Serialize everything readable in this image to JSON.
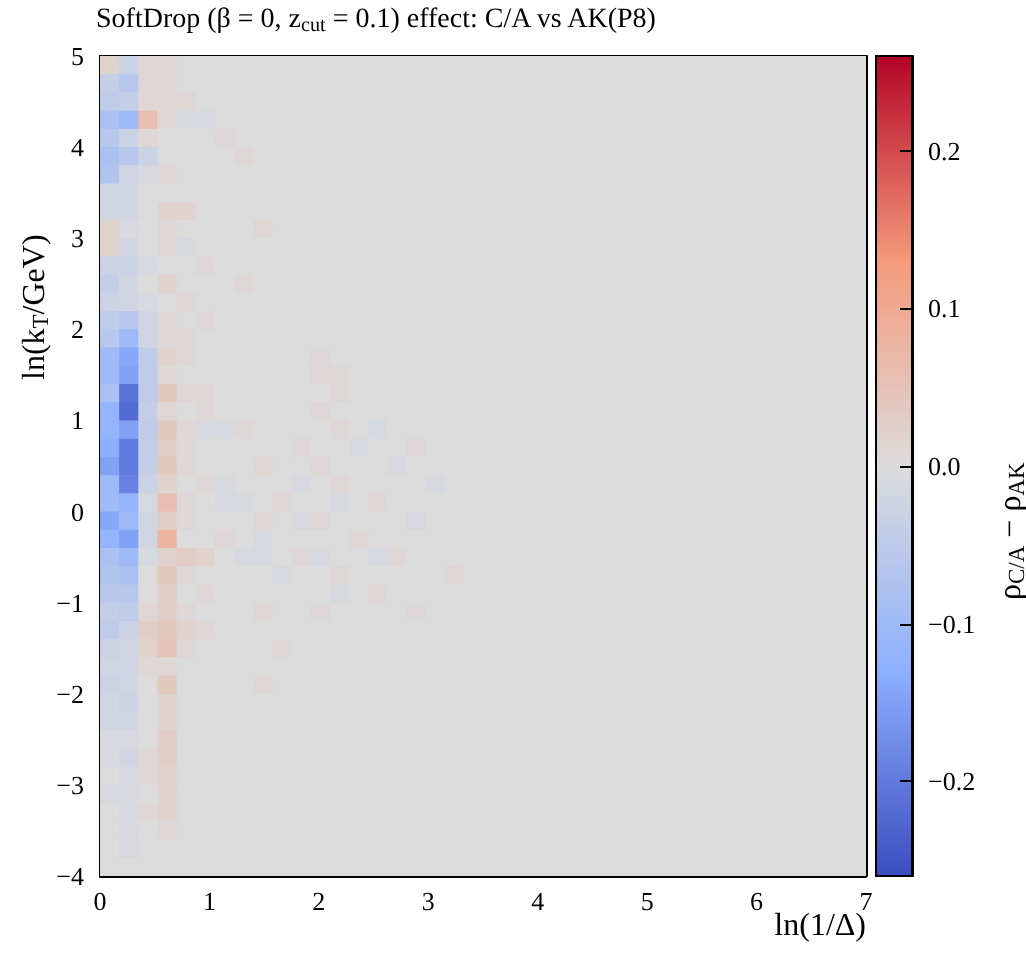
{
  "chart_data": {
    "type": "heatmap",
    "title": "SoftDrop (β = 0, z$_{cut}$ = 0.1) effect: C/A vs AK(P8)",
    "xlabel": "ln(1/Δ)",
    "ylabel": "ln(k$_{T}$/GeV)",
    "clabel": "ρ$_{C/A}$ − ρ$_{AK}$",
    "xlim": [
      0,
      7
    ],
    "xticks": [
      0,
      1,
      2,
      3,
      4,
      5,
      6,
      7
    ],
    "ylim": [
      -4,
      5
    ],
    "yticks": [
      {
        "value": -4,
        "label": "−4"
      },
      {
        "value": -3,
        "label": "−3"
      },
      {
        "value": -2,
        "label": "−2"
      },
      {
        "value": -1,
        "label": "−1"
      },
      0,
      1,
      2,
      3,
      4,
      5
    ],
    "clim": [
      -0.26,
      0.26
    ],
    "cticks": [
      {
        "value": -0.2,
        "label": "−0.2"
      },
      {
        "value": -0.1,
        "label": "−0.1"
      },
      {
        "value": 0,
        "label": "0.0"
      },
      0.1,
      0.2
    ],
    "cells": [
      [
        0.02,
        -0.03,
        0.01,
        0.01,
        0,
        0,
        0,
        0,
        0,
        0,
        0,
        0,
        0,
        0,
        0,
        0,
        0,
        0,
        0,
        0,
        0,
        0,
        0,
        0,
        0,
        0,
        0,
        0,
        0,
        0,
        0,
        0,
        0,
        0,
        0,
        0,
        0,
        0,
        0,
        0
      ],
      [
        -0.04,
        -0.06,
        0.01,
        0.01,
        0,
        0,
        0,
        0,
        0,
        0,
        0,
        0,
        0,
        0,
        0,
        0,
        0,
        0,
        0,
        0,
        0,
        0,
        0,
        0,
        0,
        0,
        0,
        0,
        0,
        0,
        0,
        0,
        0,
        0,
        0,
        0,
        0,
        0,
        0,
        0
      ],
      [
        -0.05,
        -0.04,
        0.01,
        0.01,
        0.01,
        0,
        0,
        0,
        0,
        0,
        0,
        0,
        0,
        0,
        0,
        0,
        0,
        0,
        0,
        0,
        0,
        0,
        0,
        0,
        0,
        0,
        0,
        0,
        0,
        0,
        0,
        0,
        0,
        0,
        0,
        0,
        0,
        0,
        0,
        0
      ],
      [
        -0.08,
        -0.1,
        0.06,
        0.01,
        -0.01,
        -0.01,
        0,
        0,
        0,
        0,
        0,
        0,
        0,
        0,
        0,
        0,
        0,
        0,
        0,
        0,
        0,
        0,
        0,
        0,
        0,
        0,
        0,
        0,
        0,
        0,
        0,
        0,
        0,
        0,
        0,
        0,
        0,
        0,
        0,
        0
      ],
      [
        -0.06,
        -0.03,
        0.01,
        0,
        0,
        0,
        0.01,
        0,
        0,
        0,
        0,
        0,
        0,
        0,
        0,
        0,
        0,
        0,
        0,
        0,
        0,
        0,
        0,
        0,
        0,
        0,
        0,
        0,
        0,
        0,
        0,
        0,
        0,
        0,
        0,
        0,
        0,
        0,
        0,
        0
      ],
      [
        -0.08,
        -0.06,
        -0.03,
        0,
        0,
        0,
        0,
        0.01,
        0,
        0,
        0,
        0,
        0,
        0,
        0,
        0,
        0,
        0,
        0,
        0,
        0,
        0,
        0,
        0,
        0,
        0,
        0,
        0,
        0,
        0,
        0,
        0,
        0,
        0,
        0,
        0,
        0,
        0,
        0,
        0
      ],
      [
        -0.07,
        -0.02,
        -0.01,
        0.01,
        0,
        0,
        0,
        0,
        0,
        0,
        0,
        0,
        0,
        0,
        0,
        0,
        0,
        0,
        0,
        0,
        0,
        0,
        0,
        0,
        0,
        0,
        0,
        0,
        0,
        0,
        0,
        0,
        0,
        0,
        0,
        0,
        0,
        0,
        0,
        0
      ],
      [
        -0.02,
        -0.02,
        0,
        0,
        0,
        0,
        0,
        0,
        0,
        0,
        0,
        0,
        0,
        0,
        0,
        0,
        0,
        0,
        0,
        0,
        0,
        0,
        0,
        0,
        0,
        0,
        0,
        0,
        0,
        0,
        0,
        0,
        0,
        0,
        0,
        0,
        0,
        0,
        0,
        0
      ],
      [
        -0.02,
        -0.02,
        0,
        0.02,
        0.02,
        0,
        0,
        0,
        0,
        0,
        0,
        0,
        0,
        0,
        0,
        0,
        0,
        0,
        0,
        0,
        0,
        0,
        0,
        0,
        0,
        0,
        0,
        0,
        0,
        0,
        0,
        0,
        0,
        0,
        0,
        0,
        0,
        0,
        0,
        0
      ],
      [
        0.02,
        -0.01,
        0,
        0.01,
        0,
        0,
        0,
        0,
        0.01,
        0,
        0,
        0,
        0,
        0,
        0,
        0,
        0,
        0,
        0,
        0,
        0,
        0,
        0,
        0,
        0,
        0,
        0,
        0,
        0,
        0,
        0,
        0,
        0,
        0,
        0,
        0,
        0,
        0,
        0,
        0
      ],
      [
        0.02,
        -0.02,
        0,
        0.01,
        -0.01,
        0,
        0,
        0,
        0,
        0,
        0,
        0,
        0,
        0,
        0,
        0,
        0,
        0,
        0,
        0,
        0,
        0,
        0,
        0,
        0,
        0,
        0,
        0,
        0,
        0,
        0,
        0,
        0,
        0,
        0,
        0,
        0,
        0,
        0,
        0
      ],
      [
        -0.03,
        -0.03,
        -0.01,
        0,
        0,
        0.01,
        0,
        0,
        0,
        0,
        0,
        0,
        0,
        0,
        0,
        0,
        0,
        0,
        0,
        0,
        0,
        0,
        0,
        0,
        0,
        0,
        0,
        0,
        0,
        0,
        0,
        0,
        0,
        0,
        0,
        0,
        0,
        0,
        0,
        0
      ],
      [
        -0.04,
        -0.02,
        0,
        0.02,
        0,
        0,
        0,
        0.01,
        0,
        0,
        0,
        0,
        0,
        0,
        0,
        0,
        0,
        0,
        0,
        0,
        0,
        0,
        0,
        0,
        0,
        0,
        0,
        0,
        0,
        0,
        0,
        0,
        0,
        0,
        0,
        0,
        0,
        0,
        0,
        0
      ],
      [
        -0.03,
        -0.02,
        -0.01,
        0,
        0.01,
        0,
        0,
        0,
        0,
        0,
        0,
        0,
        0,
        0,
        0,
        0,
        0,
        0,
        0,
        0,
        0,
        0,
        0,
        0,
        0,
        0,
        0,
        0,
        0,
        0,
        0,
        0,
        0,
        0,
        0,
        0,
        0,
        0,
        0,
        0
      ],
      [
        -0.05,
        -0.06,
        -0.02,
        0.01,
        0,
        0.01,
        0,
        0,
        0,
        0,
        0,
        0,
        0,
        0,
        0,
        0,
        0,
        0,
        0,
        0,
        0,
        0,
        0,
        0,
        0,
        0,
        0,
        0,
        0,
        0,
        0,
        0,
        0,
        0,
        0,
        0,
        0,
        0,
        0,
        0
      ],
      [
        -0.06,
        -0.1,
        -0.02,
        0.01,
        0.01,
        0,
        0,
        0,
        0,
        0,
        0,
        0,
        0,
        0,
        0,
        0,
        0,
        0,
        0,
        0,
        0,
        0,
        0,
        0,
        0,
        0,
        0,
        0,
        0,
        0,
        0,
        0,
        0,
        0,
        0,
        0,
        0,
        0,
        0,
        0
      ],
      [
        -0.1,
        -0.14,
        -0.05,
        0.02,
        0.01,
        0,
        0,
        0,
        0,
        0,
        0,
        0.01,
        0,
        0,
        0,
        0,
        0,
        0,
        0,
        0,
        0,
        0,
        0,
        0,
        0,
        0,
        0,
        0,
        0,
        0,
        0,
        0,
        0,
        0,
        0,
        0,
        0,
        0,
        0,
        0
      ],
      [
        -0.1,
        -0.15,
        -0.05,
        0.01,
        0,
        0,
        0,
        0,
        0,
        0,
        0,
        0.01,
        0.01,
        0,
        0,
        0,
        0,
        0,
        0,
        0,
        0,
        0,
        0,
        0,
        0,
        0,
        0,
        0,
        0,
        0,
        0,
        0,
        0,
        0,
        0,
        0,
        0,
        0,
        0,
        0
      ],
      [
        -0.08,
        -0.21,
        -0.05,
        0.04,
        0.01,
        0.01,
        0,
        0,
        0,
        0,
        0,
        0,
        0.01,
        0,
        0,
        0,
        0,
        0,
        0,
        0,
        0,
        0,
        0,
        0,
        0,
        0,
        0,
        0,
        0,
        0,
        0,
        0,
        0,
        0,
        0,
        0,
        0,
        0,
        0,
        0
      ],
      [
        -0.12,
        -0.22,
        -0.04,
        0.01,
        0,
        0.01,
        0,
        0,
        0,
        0,
        0,
        0.01,
        0,
        0,
        0,
        0,
        0,
        0,
        0,
        0,
        0,
        0,
        0,
        0,
        0,
        0,
        0,
        0,
        0,
        0,
        0,
        0,
        0,
        0,
        0,
        0,
        0,
        0,
        0,
        0
      ],
      [
        -0.12,
        -0.15,
        -0.05,
        0.04,
        0.01,
        -0.01,
        -0.01,
        0.01,
        0,
        0,
        0,
        0,
        0.01,
        0,
        -0.01,
        0,
        0,
        0,
        0,
        0,
        0,
        0,
        0,
        0,
        0,
        0,
        0,
        0,
        0,
        0,
        0,
        0,
        0,
        0,
        0,
        0,
        0,
        0,
        0,
        0
      ],
      [
        -0.13,
        -0.2,
        -0.04,
        0.03,
        0.01,
        0,
        0,
        0,
        0,
        0,
        0.01,
        0,
        0,
        -0.01,
        0,
        0,
        0.01,
        0,
        0,
        0,
        0,
        0,
        0,
        0,
        0,
        0,
        0,
        0,
        0,
        0,
        0,
        0,
        0,
        0,
        0,
        0,
        0,
        0,
        0,
        0
      ],
      [
        -0.15,
        -0.2,
        -0.04,
        0.04,
        0.01,
        0,
        0,
        0,
        0.01,
        0,
        0,
        0.01,
        0,
        0,
        0,
        -0.01,
        0,
        0,
        0,
        0,
        0,
        0,
        0,
        0,
        0,
        0,
        0,
        0,
        0,
        0,
        0,
        0,
        0,
        0,
        0,
        0,
        0,
        0,
        0,
        0
      ],
      [
        -0.1,
        -0.19,
        -0.03,
        0.02,
        0,
        0.01,
        -0.01,
        0,
        0,
        0,
        -0.01,
        0,
        0.01,
        0,
        0,
        0,
        0,
        -0.01,
        0,
        0,
        0,
        0,
        0,
        0,
        0,
        0,
        0,
        0,
        0,
        0,
        0,
        0,
        0,
        0,
        0,
        0,
        0,
        0,
        0,
        0
      ],
      [
        -0.1,
        -0.12,
        -0.01,
        0.06,
        0.01,
        0,
        -0.01,
        -0.01,
        0,
        0.01,
        0,
        0,
        -0.01,
        0,
        0.01,
        0,
        0,
        0,
        0,
        0,
        0,
        0,
        0,
        0,
        0,
        0,
        0,
        0,
        0,
        0,
        0,
        0,
        0,
        0,
        0,
        0,
        0,
        0,
        0,
        0
      ],
      [
        -0.14,
        -0.1,
        -0.02,
        0.03,
        0.01,
        0,
        0,
        0,
        0.01,
        0,
        -0.01,
        0.01,
        0,
        0,
        0,
        0,
        -0.01,
        0,
        0,
        0,
        0,
        0,
        0,
        0,
        0,
        0,
        0,
        0,
        0,
        0,
        0,
        0,
        0,
        0,
        0,
        0,
        0,
        0,
        0,
        0
      ],
      [
        -0.12,
        -0.15,
        -0.02,
        0.08,
        0,
        0,
        0.01,
        0,
        -0.01,
        0,
        0,
        0,
        0,
        0.01,
        0,
        0,
        0,
        0,
        0,
        0,
        0,
        0,
        0,
        0,
        0,
        0,
        0,
        0,
        0,
        0,
        0,
        0,
        0,
        0,
        0,
        0,
        0,
        0,
        0,
        0
      ],
      [
        -0.08,
        -0.1,
        -0.01,
        0.02,
        0.03,
        0.02,
        0,
        -0.01,
        -0.01,
        0,
        0.01,
        -0.01,
        0,
        0,
        -0.01,
        0.01,
        0,
        0,
        0,
        0,
        0,
        0,
        0,
        0,
        0,
        0,
        0,
        0,
        0,
        0,
        0,
        0,
        0,
        0,
        0,
        0,
        0,
        0,
        0,
        0
      ],
      [
        -0.07,
        -0.08,
        0,
        0.04,
        0.01,
        0,
        0,
        0,
        0,
        -0.01,
        0,
        0,
        0.01,
        0,
        0,
        0,
        0,
        0,
        0.01,
        0,
        0,
        0,
        0,
        0,
        0,
        0,
        0,
        0,
        0,
        0,
        0,
        0,
        0,
        0,
        0,
        0,
        0,
        0,
        0,
        0
      ],
      [
        -0.06,
        -0.06,
        0,
        0.03,
        0,
        0.01,
        0,
        0,
        0,
        0,
        0,
        0,
        -0.01,
        0,
        0.01,
        0,
        0,
        0,
        0,
        0,
        0,
        0,
        0,
        0,
        0,
        0,
        0,
        0,
        0,
        0,
        0,
        0,
        0,
        0,
        0,
        0,
        0,
        0,
        0,
        0
      ],
      [
        -0.04,
        -0.05,
        0.01,
        0.03,
        0.01,
        0,
        0,
        0,
        0.01,
        0,
        0,
        0.01,
        0,
        0,
        0,
        0,
        0.01,
        0,
        0,
        0,
        0,
        0,
        0,
        0,
        0,
        0,
        0,
        0,
        0,
        0,
        0,
        0,
        0,
        0,
        0,
        0,
        0,
        0,
        0,
        0
      ],
      [
        -0.05,
        -0.03,
        0.03,
        0.04,
        0.02,
        0.01,
        0,
        0,
        0,
        0,
        0,
        0,
        0,
        0,
        0,
        0,
        0,
        0,
        0,
        0,
        0,
        0,
        0,
        0,
        0,
        0,
        0,
        0,
        0,
        0,
        0,
        0,
        0,
        0,
        0,
        0,
        0,
        0,
        0,
        0
      ],
      [
        -0.03,
        -0.02,
        0.02,
        0.05,
        0.01,
        0,
        0,
        0,
        0,
        0.01,
        0,
        0,
        0,
        0,
        0,
        0,
        0,
        0,
        0,
        0,
        0,
        0,
        0,
        0,
        0,
        0,
        0,
        0,
        0,
        0,
        0,
        0,
        0,
        0,
        0,
        0,
        0,
        0,
        0,
        0
      ],
      [
        -0.02,
        -0.02,
        0.01,
        0.01,
        0,
        0,
        0,
        0,
        0,
        0,
        0,
        0,
        0,
        0,
        0,
        0,
        0,
        0,
        0,
        0,
        0,
        0,
        0,
        0,
        0,
        0,
        0,
        0,
        0,
        0,
        0,
        0,
        0,
        0,
        0,
        0,
        0,
        0,
        0,
        0
      ],
      [
        -0.03,
        -0.02,
        0,
        0.04,
        0,
        0,
        0,
        0,
        0.01,
        0,
        0,
        0,
        0,
        0,
        0,
        0,
        0,
        0,
        0,
        0,
        0,
        0,
        0,
        0,
        0,
        0,
        0,
        0,
        0,
        0,
        0,
        0,
        0,
        0,
        0,
        0,
        0,
        0,
        0,
        0
      ],
      [
        -0.02,
        -0.03,
        0,
        0.02,
        0,
        0,
        0,
        0,
        0,
        0,
        0,
        0,
        0,
        0,
        0,
        0,
        0,
        0,
        0,
        0,
        0,
        0,
        0,
        0,
        0,
        0,
        0,
        0,
        0,
        0,
        0,
        0,
        0,
        0,
        0,
        0,
        0,
        0,
        0,
        0
      ],
      [
        -0.02,
        -0.02,
        0,
        0.02,
        0,
        0,
        0,
        0,
        0,
        0,
        0,
        0,
        0,
        0,
        0,
        0,
        0,
        0,
        0,
        0,
        0,
        0,
        0,
        0,
        0,
        0,
        0,
        0,
        0,
        0,
        0,
        0,
        0,
        0,
        0,
        0,
        0,
        0,
        0,
        0
      ],
      [
        -0.01,
        -0.01,
        0,
        0.03,
        0,
        0,
        0,
        0,
        0,
        0,
        0,
        0,
        0,
        0,
        0,
        0,
        0,
        0,
        0,
        0,
        0,
        0,
        0,
        0,
        0,
        0,
        0,
        0,
        0,
        0,
        0,
        0,
        0,
        0,
        0,
        0,
        0,
        0,
        0,
        0
      ],
      [
        -0.01,
        -0.02,
        0.01,
        0.03,
        0,
        0,
        0,
        0,
        0,
        0,
        0,
        0,
        0,
        0,
        0,
        0,
        0,
        0,
        0,
        0,
        0,
        0,
        0,
        0,
        0,
        0,
        0,
        0,
        0,
        0,
        0,
        0,
        0,
        0,
        0,
        0,
        0,
        0,
        0,
        0
      ],
      [
        0,
        -0.01,
        0.01,
        0.02,
        0,
        0,
        0,
        0,
        0,
        0,
        0,
        0,
        0,
        0,
        0,
        0,
        0,
        0,
        0,
        0,
        0,
        0,
        0,
        0,
        0,
        0,
        0,
        0,
        0,
        0,
        0,
        0,
        0,
        0,
        0,
        0,
        0,
        0,
        0,
        0
      ],
      [
        -0.01,
        -0.01,
        0,
        0.02,
        0,
        0,
        0,
        0,
        0,
        0,
        0,
        0,
        0,
        0,
        0,
        0,
        0,
        0,
        0,
        0,
        0,
        0,
        0,
        0,
        0,
        0,
        0,
        0,
        0,
        0,
        0,
        0,
        0,
        0,
        0,
        0,
        0,
        0,
        0,
        0
      ],
      [
        0,
        -0.01,
        0.01,
        0.02,
        0,
        0,
        0,
        0,
        0,
        0,
        0,
        0,
        0,
        0,
        0,
        0,
        0,
        0,
        0,
        0,
        0,
        0,
        0,
        0,
        0,
        0,
        0,
        0,
        0,
        0,
        0,
        0,
        0,
        0,
        0,
        0,
        0,
        0,
        0,
        0
      ],
      [
        0,
        -0.01,
        0,
        0.01,
        0,
        0,
        0,
        0,
        0,
        0,
        0,
        0,
        0,
        0,
        0,
        0,
        0,
        0,
        0,
        0,
        0,
        0,
        0,
        0,
        0,
        0,
        0,
        0,
        0,
        0,
        0,
        0,
        0,
        0,
        0,
        0,
        0,
        0,
        0,
        0
      ],
      [
        0,
        -0.01,
        0,
        0,
        0,
        0,
        0,
        0,
        0,
        0,
        0,
        0,
        0,
        0,
        0,
        0,
        0,
        0,
        0,
        0,
        0,
        0,
        0,
        0,
        0,
        0,
        0,
        0,
        0,
        0,
        0,
        0,
        0,
        0,
        0,
        0,
        0,
        0,
        0,
        0
      ],
      [
        0,
        0,
        0,
        0,
        0,
        0,
        0,
        0,
        0,
        0,
        0,
        0,
        0,
        0,
        0,
        0,
        0,
        0,
        0,
        0,
        0,
        0,
        0,
        0,
        0,
        0,
        0,
        0,
        0,
        0,
        0,
        0,
        0,
        0,
        0,
        0,
        0,
        0,
        0,
        0
      ]
    ]
  }
}
